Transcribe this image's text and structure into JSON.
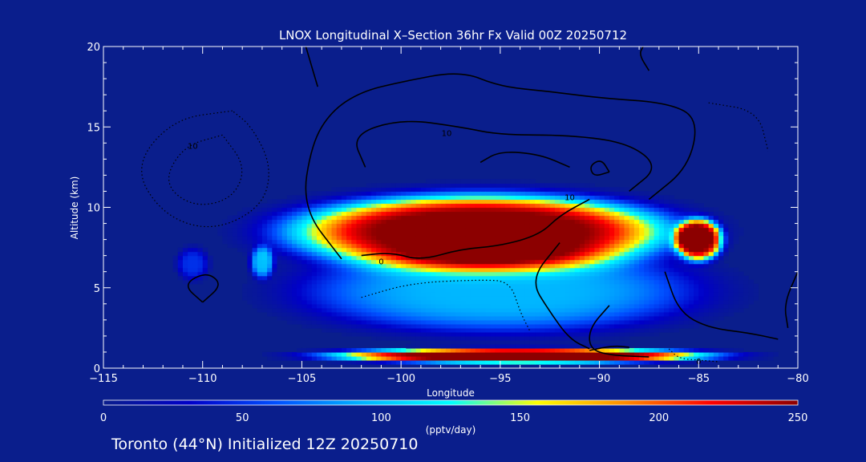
{
  "chart_data": {
    "type": "heatmap",
    "title": "LNOX Longitudinal X–Section 36hr  Fx Valid 00Z 20250712",
    "xlabel": "Longitude",
    "ylabel": "Altitude (km)",
    "xlim": [
      -115,
      -80
    ],
    "ylim": [
      0,
      20
    ],
    "xticks": [
      -115,
      -110,
      -105,
      -100,
      -95,
      -90,
      -85,
      -80
    ],
    "yticks": [
      0,
      5,
      10,
      15,
      20
    ],
    "colorbar": {
      "label": "(pptv/day)",
      "range": [
        0,
        250
      ],
      "ticks": [
        0,
        50,
        100,
        150,
        200,
        250
      ],
      "colors": [
        "#0a1e8c",
        "#0000c8",
        "#0050ff",
        "#00b4ff",
        "#00ffff",
        "#ffff00",
        "#ff8c00",
        "#ff0000",
        "#8c0000"
      ]
    },
    "fields": [
      {
        "lon_center": -96,
        "alt_center": 8.5,
        "lon_halfwidth": 9.5,
        "alt_halfwidth": 2.3,
        "peak": 270
      },
      {
        "lon_center": -85,
        "alt_center": 8.0,
        "lon_halfwidth": 1.2,
        "alt_halfwidth": 1.3,
        "peak": 250
      },
      {
        "lon_center": -95,
        "alt_center": 4.8,
        "lon_halfwidth": 10,
        "alt_halfwidth": 2.6,
        "peak": 95
      },
      {
        "lon_center": -94,
        "alt_center": 0.8,
        "lon_halfwidth": 9.5,
        "alt_halfwidth": 0.45,
        "peak": 280
      },
      {
        "lon_center": -107,
        "alt_center": 6.6,
        "lon_halfwidth": 0.6,
        "alt_halfwidth": 1.0,
        "peak": 95
      },
      {
        "lon_center": -110.5,
        "alt_center": 6.5,
        "lon_halfwidth": 0.8,
        "alt_halfwidth": 1.0,
        "peak": 50
      }
    ],
    "contour_labels": [
      {
        "text": "10",
        "lon": -110.5,
        "alt": 13.8
      },
      {
        "text": "10",
        "lon": -97.7,
        "alt": 14.6
      },
      {
        "text": "10",
        "lon": -91.5,
        "alt": 10.6
      },
      {
        "text": "0",
        "lon": -101,
        "alt": 6.6
      },
      {
        "text": "0",
        "lon": -85,
        "alt": 0.4
      }
    ],
    "contours": [
      {
        "style": "solid",
        "points": [
          [
            -103,
            6.8
          ],
          [
            -105,
            10
          ],
          [
            -104.5,
            14
          ],
          [
            -103.5,
            16
          ],
          [
            -102,
            17.2
          ],
          [
            -100,
            17.8
          ],
          [
            -97,
            18.5
          ],
          [
            -95,
            17.5
          ],
          [
            -92.5,
            17.2
          ],
          [
            -90,
            16.8
          ],
          [
            -86.5,
            16.5
          ],
          [
            -85,
            15.5
          ],
          [
            -85.5,
            12.5
          ],
          [
            -87.5,
            10.5
          ]
        ]
      },
      {
        "style": "solid",
        "points": [
          [
            -101.8,
            12.5
          ],
          [
            -102.5,
            14.5
          ],
          [
            -100,
            15.5
          ],
          [
            -97,
            15
          ],
          [
            -95,
            14.5
          ],
          [
            -91.5,
            14.5
          ],
          [
            -88.5,
            14
          ],
          [
            -87,
            12.5
          ],
          [
            -88.5,
            11
          ]
        ]
      },
      {
        "style": "solid",
        "points": [
          [
            -96,
            12.8
          ],
          [
            -95,
            13.5
          ],
          [
            -93,
            13.3
          ],
          [
            -91.5,
            12.5
          ]
        ]
      },
      {
        "style": "solid",
        "points": [
          [
            -89.5,
            12.2
          ],
          [
            -90.3,
            11.9
          ],
          [
            -90.5,
            12.6
          ],
          [
            -89.9,
            13
          ],
          [
            -89.5,
            12.2
          ]
        ]
      },
      {
        "style": "solid",
        "points": [
          [
            -102,
            7
          ],
          [
            -100.5,
            7.2
          ],
          [
            -99,
            6.7
          ],
          [
            -97,
            7.4
          ],
          [
            -95,
            7.6
          ],
          [
            -93,
            8.3
          ],
          [
            -92,
            9.5
          ],
          [
            -90.5,
            10.5
          ]
        ]
      },
      {
        "style": "solid",
        "points": [
          [
            -92,
            7.8
          ],
          [
            -93.5,
            5.5
          ],
          [
            -92.5,
            3.5
          ],
          [
            -91.5,
            1.8
          ],
          [
            -90.5,
            1.2
          ]
        ]
      },
      {
        "style": "solid",
        "points": [
          [
            -89.5,
            3.9
          ],
          [
            -90.5,
            2.5
          ],
          [
            -90.5,
            1.2
          ],
          [
            -89.5,
            0.8
          ],
          [
            -87.5,
            0.7
          ]
        ]
      },
      {
        "style": "solid",
        "points": [
          [
            -86.7,
            6
          ],
          [
            -86,
            3.5
          ],
          [
            -84.5,
            2.5
          ],
          [
            -82.5,
            2.2
          ],
          [
            -81,
            1.8
          ]
        ]
      },
      {
        "style": "solid",
        "points": [
          [
            -110,
            4.1
          ],
          [
            -111,
            5.2
          ],
          [
            -109.8,
            6
          ],
          [
            -109,
            5.2
          ],
          [
            -110,
            4.1
          ]
        ]
      },
      {
        "style": "solid",
        "points": [
          [
            -87.5,
            18.5
          ],
          [
            -88,
            19.5
          ],
          [
            -87.8,
            20
          ]
        ]
      },
      {
        "style": "solid",
        "points": [
          [
            -104.8,
            20
          ],
          [
            -104.2,
            17.5
          ]
        ]
      },
      {
        "style": "solid",
        "points": [
          [
            -80.5,
            2.5
          ],
          [
            -80.7,
            4
          ],
          [
            -80,
            6
          ]
        ]
      },
      {
        "style": "solid",
        "points": [
          [
            -90.5,
            1.1
          ],
          [
            -89.3,
            1.4
          ],
          [
            -88.5,
            1.3
          ]
        ]
      },
      {
        "style": "dotted",
        "points": [
          [
            -108.5,
            16
          ],
          [
            -111.5,
            15.5
          ],
          [
            -113.5,
            12.5
          ],
          [
            -112,
            9.5
          ],
          [
            -109.5,
            8.5
          ],
          [
            -107,
            10
          ],
          [
            -106.5,
            12.5
          ],
          [
            -107.5,
            15
          ],
          [
            -108.5,
            16
          ]
        ]
      },
      {
        "style": "dotted",
        "points": [
          [
            -109,
            14.5
          ],
          [
            -111,
            13.8
          ],
          [
            -112,
            11.5
          ],
          [
            -110.5,
            10
          ],
          [
            -108.5,
            10.5
          ],
          [
            -107.8,
            12.5
          ],
          [
            -109,
            14.5
          ]
        ]
      },
      {
        "style": "dotted",
        "points": [
          [
            -102,
            4.4
          ],
          [
            -99.5,
            5.3
          ],
          [
            -96,
            5.5
          ],
          [
            -94.5,
            5.4
          ],
          [
            -94,
            3.5
          ],
          [
            -93.5,
            2.3
          ]
        ]
      },
      {
        "style": "dotted",
        "points": [
          [
            -84.5,
            16.5
          ],
          [
            -82,
            16
          ],
          [
            -81.5,
            13.5
          ]
        ]
      },
      {
        "style": "dotted",
        "points": [
          [
            -86.5,
            1.2
          ],
          [
            -86,
            0.6
          ],
          [
            -85,
            0.5
          ],
          [
            -84,
            0.4
          ]
        ]
      }
    ]
  },
  "footer": {
    "caption": "Toronto (44°N) Initialized 12Z 20250710"
  }
}
